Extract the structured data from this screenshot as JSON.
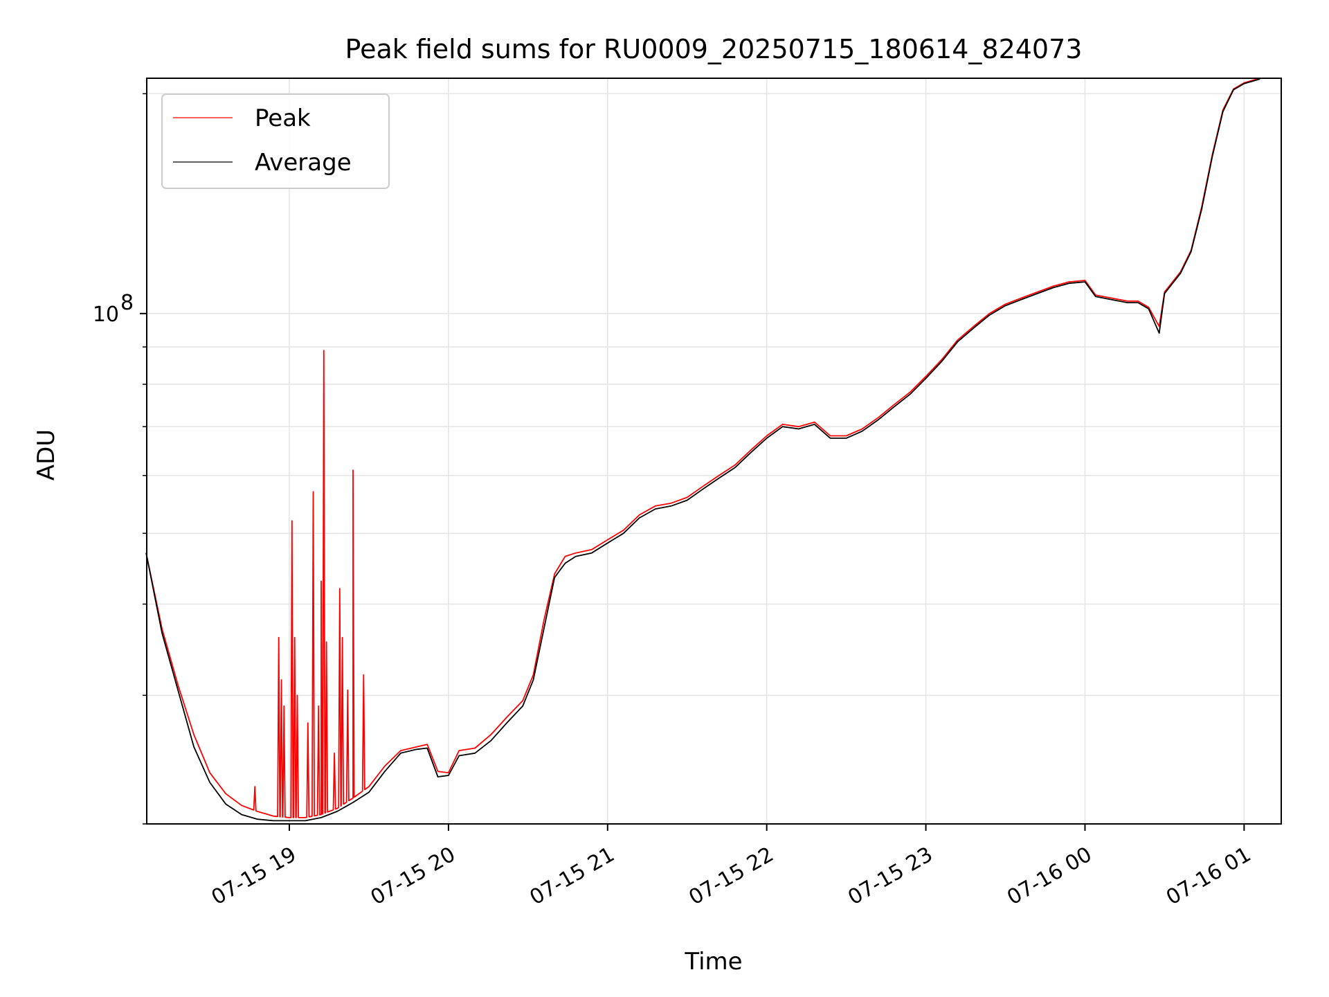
{
  "chart_data": {
    "type": "line",
    "title": "Peak field sums for RU0009_20250715_180614_824073",
    "xlabel": "Time",
    "ylabel": "ADU",
    "y_scale": "log",
    "ylim": [
      20000000,
      210000000
    ],
    "xlim": [
      "2025-07-15 18:06:14",
      "2025-07-16 01:14:00"
    ],
    "x_ticks": [
      {
        "t": "2025-07-15 19:00",
        "label": "07-15 19"
      },
      {
        "t": "2025-07-15 20:00",
        "label": "07-15 20"
      },
      {
        "t": "2025-07-15 21:00",
        "label": "07-15 21"
      },
      {
        "t": "2025-07-15 22:00",
        "label": "07-15 22"
      },
      {
        "t": "2025-07-15 23:00",
        "label": "07-15 23"
      },
      {
        "t": "2025-07-16 00:00",
        "label": "07-16 00"
      },
      {
        "t": "2025-07-16 01:00",
        "label": "07-16 01"
      }
    ],
    "y_major_ticks": [
      {
        "value": 100000000,
        "label": "10",
        "exp": "8"
      }
    ],
    "y_minor_ticks": [
      20000000,
      30000000,
      40000000,
      50000000,
      60000000,
      70000000,
      80000000,
      90000000,
      200000000
    ],
    "grid": true,
    "legend_position": "upper-left",
    "series": [
      {
        "name": "Peak",
        "color": "#ff0000",
        "points": [
          [
            "2025-07-15 18:06",
            47000000
          ],
          [
            "2025-07-15 18:12",
            37000000
          ],
          [
            "2025-07-15 18:18",
            31000000
          ],
          [
            "2025-07-15 18:24",
            26500000
          ],
          [
            "2025-07-15 18:30",
            23500000
          ],
          [
            "2025-07-15 18:36",
            22000000
          ],
          [
            "2025-07-15 18:42",
            21200000
          ],
          [
            "2025-07-15 18:48",
            20800000
          ],
          [
            "2025-07-15 18:54",
            20500000
          ],
          [
            "2025-07-15 19:00",
            20400000
          ],
          [
            "2025-07-15 19:06",
            20400000
          ],
          [
            "2025-07-15 19:12",
            20600000
          ],
          [
            "2025-07-15 19:18",
            21000000
          ],
          [
            "2025-07-15 19:24",
            21700000
          ],
          [
            "2025-07-15 19:30",
            22500000
          ],
          [
            "2025-07-15 19:36",
            24000000
          ],
          [
            "2025-07-15 19:42",
            25200000
          ],
          [
            "2025-07-15 19:48",
            25500000
          ],
          [
            "2025-07-15 19:52",
            25700000
          ],
          [
            "2025-07-15 19:56",
            23600000
          ],
          [
            "2025-07-15 20:00",
            23500000
          ],
          [
            "2025-07-15 20:04",
            25200000
          ],
          [
            "2025-07-15 20:10",
            25400000
          ],
          [
            "2025-07-15 20:16",
            26500000
          ],
          [
            "2025-07-15 20:22",
            28000000
          ],
          [
            "2025-07-15 20:28",
            29500000
          ],
          [
            "2025-07-15 20:32",
            32000000
          ],
          [
            "2025-07-15 20:36",
            38000000
          ],
          [
            "2025-07-15 20:40",
            44000000
          ],
          [
            "2025-07-15 20:44",
            46500000
          ],
          [
            "2025-07-15 20:48",
            47000000
          ],
          [
            "2025-07-15 20:54",
            47500000
          ],
          [
            "2025-07-15 21:00",
            49000000
          ],
          [
            "2025-07-15 21:06",
            50500000
          ],
          [
            "2025-07-15 21:12",
            53000000
          ],
          [
            "2025-07-15 21:18",
            54500000
          ],
          [
            "2025-07-15 21:24",
            55000000
          ],
          [
            "2025-07-15 21:30",
            56000000
          ],
          [
            "2025-07-15 21:36",
            58000000
          ],
          [
            "2025-07-15 21:42",
            60000000
          ],
          [
            "2025-07-15 21:48",
            62000000
          ],
          [
            "2025-07-15 21:54",
            65000000
          ],
          [
            "2025-07-15 22:00",
            68000000
          ],
          [
            "2025-07-15 22:06",
            70500000
          ],
          [
            "2025-07-15 22:12",
            70000000
          ],
          [
            "2025-07-15 22:18",
            71000000
          ],
          [
            "2025-07-15 22:24",
            68000000
          ],
          [
            "2025-07-15 22:30",
            68000000
          ],
          [
            "2025-07-15 22:36",
            69500000
          ],
          [
            "2025-07-15 22:42",
            72000000
          ],
          [
            "2025-07-15 22:48",
            75000000
          ],
          [
            "2025-07-15 22:54",
            78000000
          ],
          [
            "2025-07-15 23:00",
            82000000
          ],
          [
            "2025-07-15 23:06",
            86500000
          ],
          [
            "2025-07-15 23:12",
            92000000
          ],
          [
            "2025-07-15 23:18",
            96000000
          ],
          [
            "2025-07-15 23:24",
            100000000
          ],
          [
            "2025-07-15 23:30",
            103000000
          ],
          [
            "2025-07-15 23:36",
            105000000
          ],
          [
            "2025-07-15 23:42",
            107000000
          ],
          [
            "2025-07-15 23:48",
            109000000
          ],
          [
            "2025-07-15 23:54",
            110500000
          ],
          [
            "2025-07-16 00:00",
            111000000
          ],
          [
            "2025-07-16 00:04",
            106000000
          ],
          [
            "2025-07-16 00:10",
            105000000
          ],
          [
            "2025-07-16 00:16",
            104000000
          ],
          [
            "2025-07-16 00:20",
            104000000
          ],
          [
            "2025-07-16 00:24",
            102000000
          ],
          [
            "2025-07-16 00:28",
            96000000
          ],
          [
            "2025-07-16 00:30",
            107000000
          ],
          [
            "2025-07-16 00:36",
            114000000
          ],
          [
            "2025-07-16 00:40",
            122000000
          ],
          [
            "2025-07-16 00:44",
            140000000
          ],
          [
            "2025-07-16 00:48",
            165000000
          ],
          [
            "2025-07-16 00:52",
            190000000
          ],
          [
            "2025-07-16 00:56",
            203000000
          ],
          [
            "2025-07-16 01:00",
            207000000
          ],
          [
            "2025-07-16 01:06",
            210000000
          ]
        ],
        "spikes": [
          [
            "2025-07-15 18:47",
            22500000
          ],
          [
            "2025-07-15 18:56",
            36000000
          ],
          [
            "2025-07-15 18:57",
            31500000
          ],
          [
            "2025-07-15 18:58",
            29000000
          ],
          [
            "2025-07-15 19:01",
            52000000
          ],
          [
            "2025-07-15 19:02",
            36000000
          ],
          [
            "2025-07-15 19:03",
            30000000
          ],
          [
            "2025-07-15 19:07",
            27500000
          ],
          [
            "2025-07-15 19:09",
            57000000
          ],
          [
            "2025-07-15 19:11",
            29000000
          ],
          [
            "2025-07-15 19:12",
            43000000
          ],
          [
            "2025-07-15 19:13",
            89000000
          ],
          [
            "2025-07-15 19:14",
            35500000
          ],
          [
            "2025-07-15 19:17",
            25000000
          ],
          [
            "2025-07-15 19:19",
            42000000
          ],
          [
            "2025-07-15 19:20",
            36000000
          ],
          [
            "2025-07-15 19:22",
            30500000
          ],
          [
            "2025-07-15 19:24",
            61000000
          ],
          [
            "2025-07-15 19:28",
            32000000
          ]
        ]
      },
      {
        "name": "Average",
        "color": "#000000",
        "points": [
          [
            "2025-07-15 18:06",
            47000000
          ],
          [
            "2025-07-15 18:12",
            36500000
          ],
          [
            "2025-07-15 18:18",
            30500000
          ],
          [
            "2025-07-15 18:24",
            25500000
          ],
          [
            "2025-07-15 18:30",
            22800000
          ],
          [
            "2025-07-15 18:36",
            21300000
          ],
          [
            "2025-07-15 18:42",
            20600000
          ],
          [
            "2025-07-15 18:48",
            20300000
          ],
          [
            "2025-07-15 18:54",
            20200000
          ],
          [
            "2025-07-15 19:00",
            20200000
          ],
          [
            "2025-07-15 19:06",
            20200000
          ],
          [
            "2025-07-15 19:12",
            20400000
          ],
          [
            "2025-07-15 19:18",
            20800000
          ],
          [
            "2025-07-15 19:24",
            21400000
          ],
          [
            "2025-07-15 19:30",
            22100000
          ],
          [
            "2025-07-15 19:36",
            23600000
          ],
          [
            "2025-07-15 19:42",
            25000000
          ],
          [
            "2025-07-15 19:48",
            25300000
          ],
          [
            "2025-07-15 19:52",
            25400000
          ],
          [
            "2025-07-15 19:56",
            23200000
          ],
          [
            "2025-07-15 20:00",
            23300000
          ],
          [
            "2025-07-15 20:04",
            24800000
          ],
          [
            "2025-07-15 20:10",
            25000000
          ],
          [
            "2025-07-15 20:16",
            26000000
          ],
          [
            "2025-07-15 20:22",
            27500000
          ],
          [
            "2025-07-15 20:28",
            29000000
          ],
          [
            "2025-07-15 20:32",
            31500000
          ],
          [
            "2025-07-15 20:36",
            37000000
          ],
          [
            "2025-07-15 20:40",
            43500000
          ],
          [
            "2025-07-15 20:44",
            45500000
          ],
          [
            "2025-07-15 20:48",
            46500000
          ],
          [
            "2025-07-15 20:54",
            47000000
          ],
          [
            "2025-07-15 21:00",
            48500000
          ],
          [
            "2025-07-15 21:06",
            50000000
          ],
          [
            "2025-07-15 21:12",
            52500000
          ],
          [
            "2025-07-15 21:18",
            54000000
          ],
          [
            "2025-07-15 21:24",
            54500000
          ],
          [
            "2025-07-15 21:30",
            55500000
          ],
          [
            "2025-07-15 21:36",
            57500000
          ],
          [
            "2025-07-15 21:42",
            59500000
          ],
          [
            "2025-07-15 21:48",
            61500000
          ],
          [
            "2025-07-15 21:54",
            64500000
          ],
          [
            "2025-07-15 22:00",
            67500000
          ],
          [
            "2025-07-15 22:06",
            70000000
          ],
          [
            "2025-07-15 22:12",
            69500000
          ],
          [
            "2025-07-15 22:18",
            70500000
          ],
          [
            "2025-07-15 22:24",
            67500000
          ],
          [
            "2025-07-15 22:30",
            67500000
          ],
          [
            "2025-07-15 22:36",
            69000000
          ],
          [
            "2025-07-15 22:42",
            71500000
          ],
          [
            "2025-07-15 22:48",
            74500000
          ],
          [
            "2025-07-15 22:54",
            77500000
          ],
          [
            "2025-07-15 23:00",
            81500000
          ],
          [
            "2025-07-15 23:06",
            86000000
          ],
          [
            "2025-07-15 23:12",
            91500000
          ],
          [
            "2025-07-15 23:18",
            95500000
          ],
          [
            "2025-07-15 23:24",
            99500000
          ],
          [
            "2025-07-15 23:30",
            102500000
          ],
          [
            "2025-07-15 23:36",
            104500000
          ],
          [
            "2025-07-15 23:42",
            106500000
          ],
          [
            "2025-07-15 23:48",
            108500000
          ],
          [
            "2025-07-15 23:54",
            110000000
          ],
          [
            "2025-07-16 00:00",
            110500000
          ],
          [
            "2025-07-16 00:04",
            105500000
          ],
          [
            "2025-07-16 00:10",
            104500000
          ],
          [
            "2025-07-16 00:16",
            103500000
          ],
          [
            "2025-07-16 00:20",
            103500000
          ],
          [
            "2025-07-16 00:24",
            101500000
          ],
          [
            "2025-07-16 00:28",
            94000000
          ],
          [
            "2025-07-16 00:30",
            106500000
          ],
          [
            "2025-07-16 00:36",
            113500000
          ],
          [
            "2025-07-16 00:40",
            121500000
          ],
          [
            "2025-07-16 00:44",
            139000000
          ],
          [
            "2025-07-16 00:48",
            164000000
          ],
          [
            "2025-07-16 00:52",
            189000000
          ],
          [
            "2025-07-16 00:56",
            202500000
          ],
          [
            "2025-07-16 01:00",
            206500000
          ],
          [
            "2025-07-16 01:06",
            209500000
          ]
        ]
      }
    ]
  }
}
